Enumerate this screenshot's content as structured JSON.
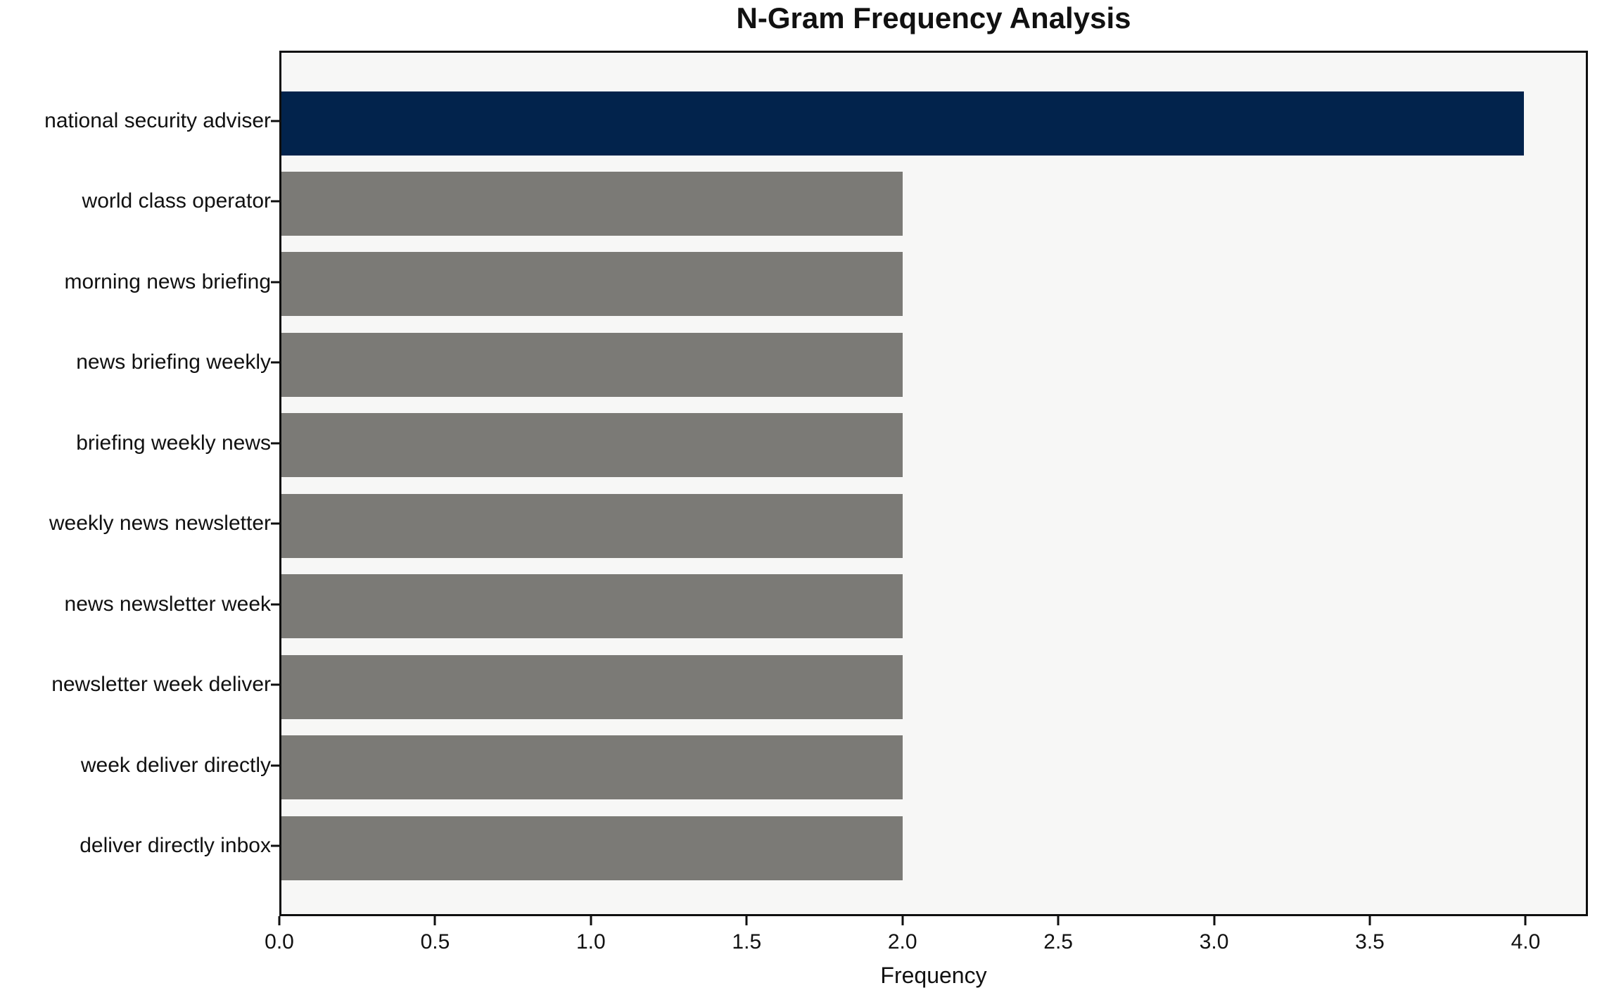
{
  "chart_data": {
    "type": "bar",
    "orientation": "horizontal",
    "title": "N-Gram Frequency Analysis",
    "xlabel": "Frequency",
    "ylabel": "",
    "categories": [
      "national security adviser",
      "world class operator",
      "morning news briefing",
      "news briefing weekly",
      "briefing weekly news",
      "weekly news newsletter",
      "news newsletter week",
      "newsletter week deliver",
      "week deliver directly",
      "deliver directly inbox"
    ],
    "values": [
      4,
      2,
      2,
      2,
      2,
      2,
      2,
      2,
      2,
      2
    ],
    "bar_colors": [
      "#02234C",
      "#7B7A76",
      "#7B7A76",
      "#7B7A76",
      "#7B7A76",
      "#7B7A76",
      "#7B7A76",
      "#7B7A76",
      "#7B7A76",
      "#7B7A76"
    ],
    "highlight_color": "#02234C",
    "default_bar_color": "#7B7A76",
    "plot_background": "#F7F7F6",
    "xlim": [
      0,
      4.2
    ],
    "x_ticks": [
      0.0,
      0.5,
      1.0,
      1.5,
      2.0,
      2.5,
      3.0,
      3.5,
      4.0
    ],
    "x_tick_labels": [
      "0.0",
      "0.5",
      "1.0",
      "1.5",
      "2.0",
      "2.5",
      "3.0",
      "3.5",
      "4.0"
    ],
    "grid": "off",
    "legend": "none"
  }
}
